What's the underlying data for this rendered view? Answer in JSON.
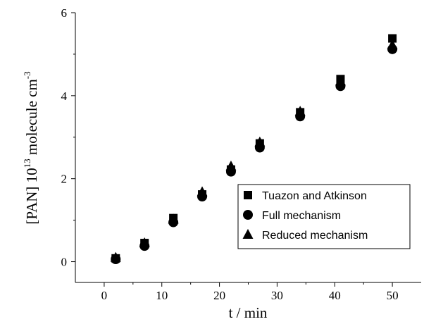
{
  "chart_data": {
    "type": "scatter",
    "xlabel": "t / min",
    "ylabel_main": "[PAN] 10",
    "ylabel_exp": "13",
    "ylabel_unit": " molecule cm",
    "ylabel_unit_exp": "-3",
    "xlim": [
      -5,
      55
    ],
    "ylim": [
      -0.5,
      6
    ],
    "x_ticks": [
      0,
      10,
      20,
      30,
      40,
      50
    ],
    "y_ticks": [
      0,
      2,
      4,
      6
    ],
    "x_tick_labels": [
      "0",
      "10",
      "20",
      "30",
      "40",
      "50"
    ],
    "y_tick_labels": [
      "0",
      "2",
      "4",
      "6"
    ],
    "legend_position": "lower-right",
    "series": [
      {
        "name": "Tuazon and Atkinson",
        "marker": "square",
        "color": "#000000",
        "x": [
          2,
          7,
          12,
          17,
          22,
          27,
          34,
          41,
          50
        ],
        "y": [
          0.08,
          0.45,
          1.05,
          1.62,
          2.22,
          2.85,
          3.6,
          4.4,
          5.38
        ]
      },
      {
        "name": "Full mechanism",
        "marker": "circle",
        "color": "#000000",
        "x": [
          2,
          7,
          12,
          17,
          22,
          27,
          34,
          41,
          50
        ],
        "y": [
          0.06,
          0.38,
          0.95,
          1.57,
          2.17,
          2.75,
          3.5,
          4.23,
          5.12
        ]
      },
      {
        "name": "Reduced mechanism",
        "marker": "triangle",
        "color": "#000000",
        "x": [
          2,
          7,
          12,
          17,
          22,
          27,
          34,
          41,
          50
        ],
        "y": [
          0.1,
          0.45,
          1.02,
          1.68,
          2.3,
          2.88,
          3.62,
          4.35,
          5.22
        ]
      }
    ]
  }
}
